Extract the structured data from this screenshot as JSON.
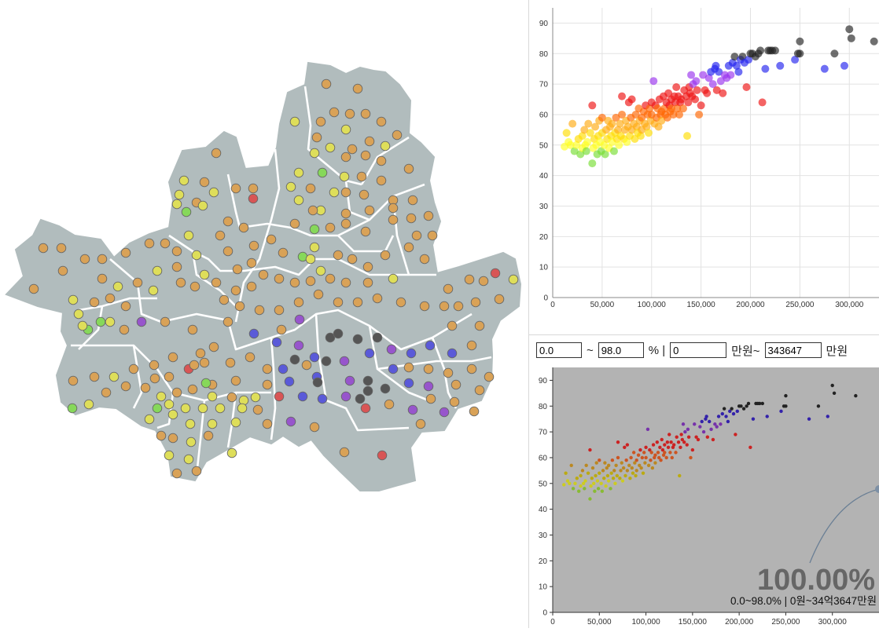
{
  "filters": {
    "pct_min": "0.0",
    "tilde_1": "~",
    "pct_max": "98.0",
    "pct_unit": "% |",
    "price_min": "0",
    "price_unit_1": "만원~",
    "price_max": "343647",
    "price_unit_2": "만원"
  },
  "summary": {
    "percent": "100.00%",
    "range_text": "0.0~98.0% | 0원~34억3647만원"
  },
  "colors": {
    "map_fill": "#b1bcbd",
    "map_border": "#ffffff",
    "bottom_bg": "#b3b3b3"
  },
  "chart_data": [
    {
      "type": "scatter",
      "title": "",
      "xlabel": "",
      "ylabel": "",
      "xlim": [
        0,
        330000
      ],
      "ylim": [
        0,
        95
      ],
      "x_ticks": [
        "0",
        "50,000",
        "100,000",
        "150,000",
        "200,000",
        "250,000",
        "300,000"
      ],
      "y_ticks": [
        "0",
        "10",
        "20",
        "30",
        "40",
        "50",
        "60",
        "70",
        "80",
        "90"
      ],
      "grid": true,
      "point_color_scale": [
        "#66dd33",
        "#ffff00",
        "#ffaa00",
        "#ff6600",
        "#ff0000",
        "#9900ff",
        "#0000ff",
        "#222222"
      ],
      "points": [
        [
          12000,
          49.5
        ],
        [
          14000,
          54
        ],
        [
          16000,
          51
        ],
        [
          18000,
          50
        ],
        [
          20000,
          57
        ],
        [
          22000,
          48
        ],
        [
          24000,
          50
        ],
        [
          26000,
          52
        ],
        [
          28000,
          47
        ],
        [
          30000,
          53
        ],
        [
          30000,
          49
        ],
        [
          32000,
          55
        ],
        [
          33000,
          50
        ],
        [
          34000,
          48
        ],
        [
          35000,
          51
        ],
        [
          36000,
          57
        ],
        [
          38000,
          54
        ],
        [
          40000,
          44
        ],
        [
          40000,
          63
        ],
        [
          41000,
          49
        ],
        [
          42000,
          52
        ],
        [
          43000,
          56
        ],
        [
          44000,
          50
        ],
        [
          45000,
          47
        ],
        [
          46000,
          53
        ],
        [
          47000,
          58
        ],
        [
          48000,
          51
        ],
        [
          49000,
          48
        ],
        [
          50000,
          54
        ],
        [
          50000,
          59
        ],
        [
          52000,
          50
        ],
        [
          53000,
          47
        ],
        [
          54000,
          55
        ],
        [
          55000,
          52
        ],
        [
          56000,
          58
        ],
        [
          57000,
          49
        ],
        [
          58000,
          56
        ],
        [
          59000,
          53
        ],
        [
          60000,
          51
        ],
        [
          60000,
          57
        ],
        [
          62000,
          48
        ],
        [
          63000,
          54
        ],
        [
          64000,
          59
        ],
        [
          65000,
          52
        ],
        [
          66000,
          55
        ],
        [
          67000,
          50
        ],
        [
          68000,
          57
        ],
        [
          69000,
          53
        ],
        [
          70000,
          60
        ],
        [
          70000,
          66
        ],
        [
          72000,
          52
        ],
        [
          73000,
          55
        ],
        [
          74000,
          58
        ],
        [
          75000,
          51
        ],
        [
          76000,
          56
        ],
        [
          77000,
          64
        ],
        [
          78000,
          53
        ],
        [
          79000,
          59
        ],
        [
          80000,
          55
        ],
        [
          80000,
          65
        ],
        [
          82000,
          57
        ],
        [
          83000,
          52
        ],
        [
          84000,
          60
        ],
        [
          85000,
          56
        ],
        [
          86000,
          54
        ],
        [
          87000,
          62
        ],
        [
          88000,
          58
        ],
        [
          89000,
          53
        ],
        [
          90000,
          59
        ],
        [
          90000,
          55
        ],
        [
          92000,
          61
        ],
        [
          93000,
          57
        ],
        [
          94000,
          63
        ],
        [
          95000,
          56
        ],
        [
          96000,
          60
        ],
        [
          97000,
          54
        ],
        [
          98000,
          62
        ],
        [
          99000,
          58
        ],
        [
          100000,
          64
        ],
        [
          100000,
          60
        ],
        [
          102000,
          71
        ],
        [
          103000,
          57
        ],
        [
          104000,
          63
        ],
        [
          105000,
          59
        ],
        [
          106000,
          62
        ],
        [
          107000,
          56
        ],
        [
          108000,
          65
        ],
        [
          109000,
          60
        ],
        [
          110000,
          61
        ],
        [
          110000,
          58
        ],
        [
          112000,
          66
        ],
        [
          113000,
          62
        ],
        [
          114000,
          60
        ],
        [
          115000,
          64
        ],
        [
          116000,
          59
        ],
        [
          117000,
          67
        ],
        [
          118000,
          63
        ],
        [
          119000,
          61
        ],
        [
          120000,
          65
        ],
        [
          120000,
          62
        ],
        [
          122000,
          60
        ],
        [
          123000,
          66
        ],
        [
          124000,
          64
        ],
        [
          125000,
          69
        ],
        [
          126000,
          62
        ],
        [
          127000,
          66
        ],
        [
          128000,
          60
        ],
        [
          129000,
          64
        ],
        [
          130000,
          65
        ],
        [
          132000,
          62
        ],
        [
          133000,
          68
        ],
        [
          135000,
          66
        ],
        [
          136000,
          53
        ],
        [
          137000,
          64
        ],
        [
          138000,
          69
        ],
        [
          139000,
          67
        ],
        [
          140000,
          73
        ],
        [
          141000,
          66
        ],
        [
          142000,
          70
        ],
        [
          144000,
          65
        ],
        [
          145000,
          71
        ],
        [
          146000,
          68
        ],
        [
          148000,
          60
        ],
        [
          150000,
          63
        ],
        [
          152000,
          73
        ],
        [
          154000,
          68
        ],
        [
          156000,
          67
        ],
        [
          158000,
          72
        ],
        [
          160000,
          74
        ],
        [
          162000,
          70
        ],
        [
          164000,
          75
        ],
        [
          165000,
          76
        ],
        [
          166000,
          68
        ],
        [
          168000,
          74
        ],
        [
          170000,
          71
        ],
        [
          172000,
          67
        ],
        [
          174000,
          73
        ],
        [
          176000,
          72
        ],
        [
          178000,
          76
        ],
        [
          180000,
          73
        ],
        [
          182000,
          77
        ],
        [
          184000,
          79
        ],
        [
          186000,
          76
        ],
        [
          188000,
          74
        ],
        [
          190000,
          78
        ],
        [
          192000,
          79
        ],
        [
          194000,
          77
        ],
        [
          196000,
          69
        ],
        [
          198000,
          78
        ],
        [
          200000,
          80
        ],
        [
          202000,
          80
        ],
        [
          205000,
          79
        ],
        [
          208000,
          80
        ],
        [
          210000,
          81
        ],
        [
          212000,
          64
        ],
        [
          215000,
          75
        ],
        [
          218000,
          81
        ],
        [
          220000,
          81
        ],
        [
          222000,
          81
        ],
        [
          225000,
          81
        ],
        [
          230000,
          76
        ],
        [
          245000,
          78
        ],
        [
          248000,
          80
        ],
        [
          250000,
          84
        ],
        [
          250000,
          80
        ],
        [
          275000,
          75
        ],
        [
          285000,
          80
        ],
        [
          295000,
          76
        ],
        [
          300000,
          88
        ],
        [
          302000,
          85
        ],
        [
          325000,
          84
        ]
      ]
    },
    {
      "type": "scatter",
      "title": "",
      "xlabel": "",
      "ylabel": "",
      "xlim": [
        0,
        350000
      ],
      "ylim": [
        0,
        95
      ],
      "x_ticks": [
        "0",
        "50,000",
        "100,000",
        "150,000",
        "200,000",
        "250,000",
        "300,000"
      ],
      "y_ticks": [
        "0",
        "10",
        "20",
        "30",
        "40",
        "50",
        "60",
        "70",
        "80",
        "90"
      ],
      "grid": false
    }
  ]
}
